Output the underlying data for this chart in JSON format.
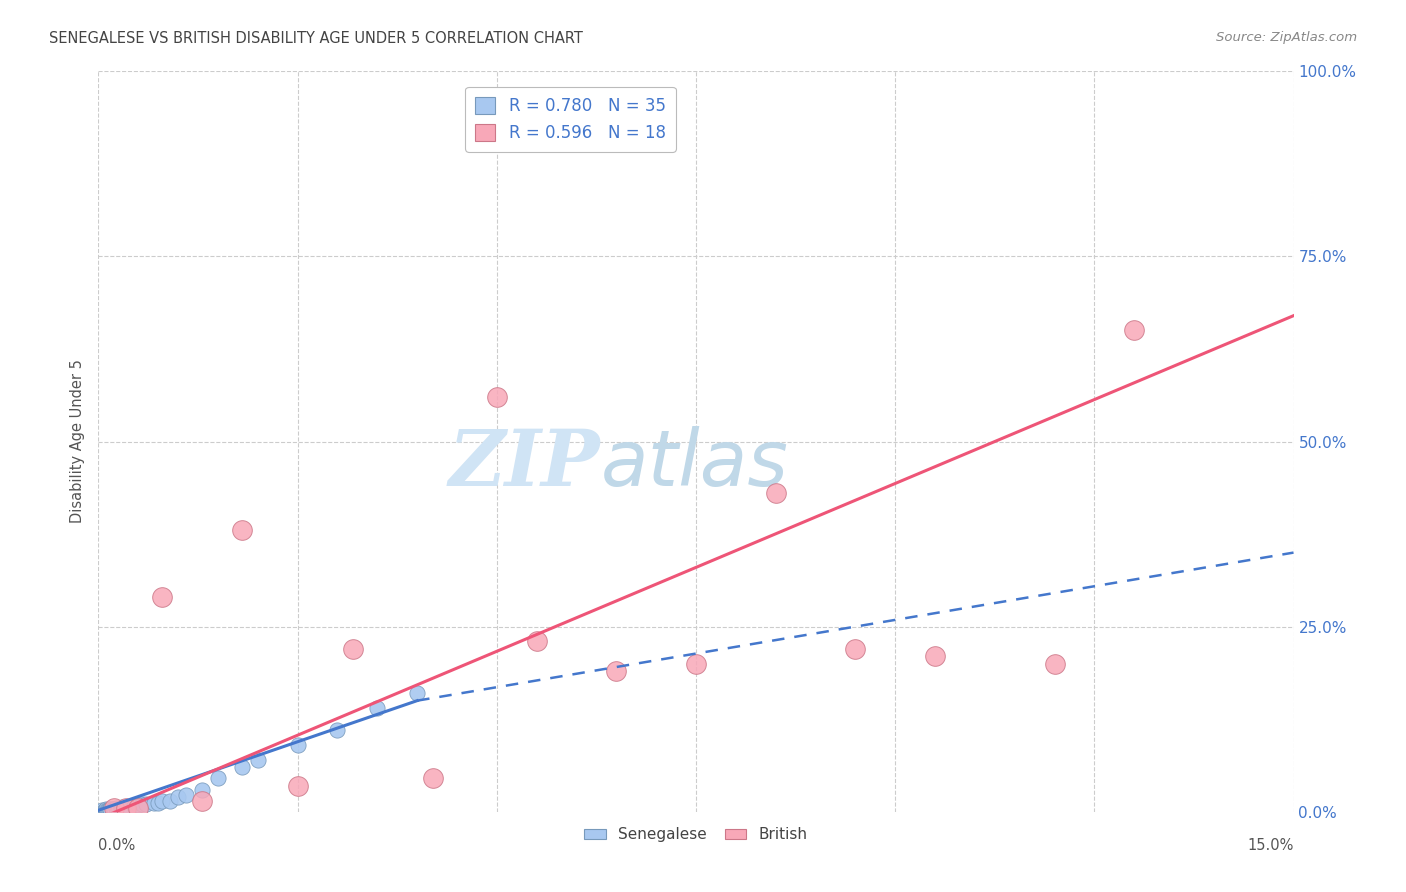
{
  "title": "SENEGALESE VS BRITISH DISABILITY AGE UNDER 5 CORRELATION CHART",
  "source": "Source: ZipAtlas.com",
  "ylabel": "Disability Age Under 5",
  "xlim": [
    0.0,
    15.0
  ],
  "ylim": [
    0.0,
    100.0
  ],
  "yticks_right": [
    0.0,
    25.0,
    50.0,
    75.0,
    100.0
  ],
  "senegalese_R": 0.78,
  "senegalese_N": 35,
  "british_R": 0.596,
  "british_N": 18,
  "senegalese_color": "#a8c8f0",
  "british_color": "#f8a8b8",
  "senegalese_line_color": "#4477cc",
  "british_line_color": "#ee5577",
  "legend_text_color": "#4477cc",
  "title_color": "#444444",
  "grid_color": "#cccccc",
  "background_color": "#ffffff",
  "watermark_zip_color": "#d0e4f5",
  "watermark_atlas_color": "#c0d8e8",
  "sen_x": [
    0.05,
    0.07,
    0.08,
    0.09,
    0.1,
    0.11,
    0.12,
    0.13,
    0.14,
    0.15,
    0.18,
    0.2,
    0.22,
    0.25,
    0.28,
    0.3,
    0.35,
    0.45,
    0.5,
    0.55,
    0.6,
    0.7,
    0.75,
    0.8,
    0.9,
    1.0,
    1.1,
    1.3,
    1.5,
    1.8,
    2.0,
    2.5,
    3.0,
    3.5,
    4.0
  ],
  "sen_y": [
    0.2,
    0.1,
    0.2,
    0.15,
    0.3,
    0.2,
    0.25,
    0.2,
    0.3,
    0.4,
    0.3,
    0.4,
    0.5,
    0.4,
    0.5,
    0.6,
    0.7,
    0.8,
    0.9,
    1.0,
    1.0,
    1.2,
    1.2,
    1.5,
    1.5,
    2.0,
    2.2,
    3.0,
    4.5,
    6.0,
    7.0,
    9.0,
    11.0,
    14.0,
    16.0
  ],
  "brit_x": [
    0.2,
    0.35,
    0.5,
    0.8,
    1.3,
    1.8,
    2.5,
    3.2,
    4.2,
    5.0,
    5.5,
    6.5,
    7.5,
    8.5,
    9.5,
    10.5,
    12.0,
    13.0
  ],
  "brit_y": [
    0.5,
    0.5,
    0.5,
    29.0,
    1.5,
    38.0,
    3.5,
    22.0,
    4.5,
    56.0,
    23.0,
    19.0,
    20.0,
    43.0,
    22.0,
    21.0,
    20.0,
    65.0
  ],
  "sen_line_x0": 0.0,
  "sen_line_x1": 4.0,
  "sen_line_y0": 0.2,
  "sen_line_y1": 15.0,
  "sen_dash_x0": 4.0,
  "sen_dash_x1": 15.0,
  "sen_dash_y0": 15.0,
  "sen_dash_y1": 35.0,
  "brit_line_x0": 0.0,
  "brit_line_x1": 15.0,
  "brit_line_y0": -1.0,
  "brit_line_y1": 67.0
}
